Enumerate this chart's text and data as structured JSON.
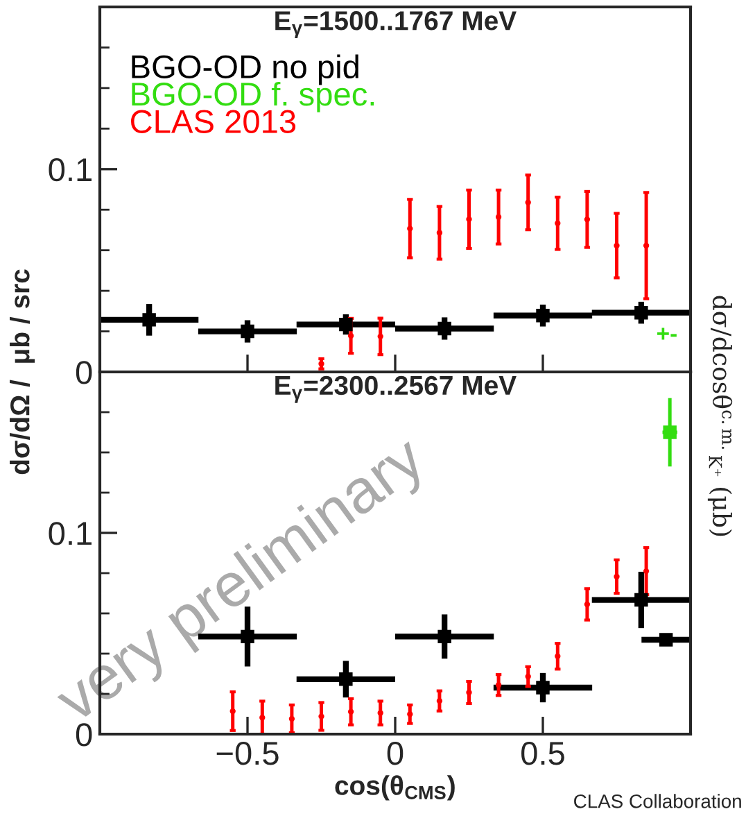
{
  "chart_data": [
    {
      "type": "scatter",
      "title": "E$_{γ}$=1500..1767 MeV",
      "ylabel": "dσ/dΩ /  μb / src",
      "tick_labels": "y",
      "xlim": [
        -1,
        1
      ],
      "ylim": [
        0,
        0.18
      ],
      "xticks": [
        {
          "value": -0.5,
          "label": null
        },
        {
          "value": 0,
          "label": null
        },
        {
          "value": 0.5,
          "label": null
        }
      ],
      "yticks": [
        0,
        {
          "value": 0.02,
          "label": null
        },
        {
          "value": 0.04,
          "label": null
        },
        {
          "value": 0.06,
          "label": null
        },
        {
          "value": 0.08,
          "label": null
        },
        0.1,
        {
          "value": 0.12,
          "label": null
        },
        {
          "value": 0.14,
          "label": null
        },
        {
          "value": 0.16,
          "label": null
        }
      ],
      "series": [
        {
          "name": "BGO-OD no pid",
          "color": "#000000",
          "x": [
            -0.833,
            -0.5,
            -0.167,
            0.167,
            0.5,
            0.833
          ],
          "values": [
            0.0257,
            0.02,
            0.0234,
            0.0214,
            0.0278,
            0.0292
          ],
          "errors": [
            0.0078,
            0.0055,
            0.005,
            0.0055,
            0.0054,
            0.0054
          ],
          "xerrors": [
            0.167,
            0.167,
            0.167,
            0.167,
            0.167,
            0.167
          ]
        },
        {
          "name": "BGO-OD f. spec.",
          "color": "#33dd11"
        },
        {
          "name": "CLAS 2013",
          "color": "#ff0000",
          "x": [
            -0.25,
            -0.15,
            -0.05,
            0.05,
            0.15,
            0.25,
            0.35,
            0.45,
            0.55,
            0.65,
            0.75,
            0.85
          ],
          "values": [
            0.004,
            0.0178,
            0.0175,
            0.0707,
            0.0686,
            0.0753,
            0.0764,
            0.0836,
            0.0733,
            0.0752,
            0.0623,
            0.0623
          ],
          "errors": [
            0.0025,
            0.0086,
            0.009,
            0.0144,
            0.013,
            0.0144,
            0.0133,
            0.0135,
            0.0129,
            0.0138,
            0.0159,
            0.0262
          ]
        }
      ],
      "annotations": [
        "+-",
        "dσ/dcosθ$^{c.m.}$$_{K⁺}$ (μb)"
      ]
    },
    {
      "type": "scatter",
      "title": "E$_{γ}$=2300..2567 MeV",
      "xlabel": "cos(θ$_{CMS}$)",
      "xlim": [
        -1,
        1
      ],
      "ylim": [
        0,
        0.18
      ],
      "xticks": [
        {
          "value": -0.5,
          "label": "−0.5"
        },
        0,
        0.5
      ],
      "yticks": [
        0,
        {
          "value": 0.02,
          "label": null
        },
        {
          "value": 0.04,
          "label": null
        },
        {
          "value": 0.06,
          "label": null
        },
        {
          "value": 0.08,
          "label": null
        },
        0.1,
        {
          "value": 0.12,
          "label": null
        },
        {
          "value": 0.14,
          "label": null
        },
        {
          "value": 0.16,
          "label": null
        }
      ],
      "series": [
        {
          "color": "#000000",
          "x": [
            -0.5,
            -0.167,
            0.167,
            0.5,
            0.833,
            0.917
          ],
          "values": [
            0.0485,
            0.0273,
            0.0485,
            0.0231,
            0.0667,
            0.0469
          ],
          "errors": [
            0.0149,
            0.0091,
            0.011,
            0.0073,
            0.014,
            null
          ],
          "xerrors": [
            0.167,
            0.167,
            0.167,
            0.167,
            0.167,
            0.083
          ]
        },
        {
          "color": "#33dd11",
          "x": [
            0.93
          ],
          "values": [
            0.15
          ],
          "errors": [
            0.017
          ],
          "xerrors": [
            0.025
          ]
        },
        {
          "color": "#ff0000",
          "x": [
            -0.55,
            -0.45,
            -0.35,
            -0.25,
            -0.15,
            -0.05,
            0.05,
            0.15,
            0.25,
            0.35,
            0.45,
            0.55,
            0.65,
            0.75,
            0.85
          ],
          "values": [
            0.0114,
            0.0082,
            0.0076,
            0.0088,
            0.0111,
            0.0105,
            0.0099,
            0.0165,
            0.0207,
            0.0244,
            0.0286,
            0.0387,
            0.0645,
            0.0783,
            0.081
          ],
          "errors": [
            0.0096,
            0.0082,
            0.0069,
            0.0069,
            0.0065,
            0.0059,
            0.0046,
            0.005,
            0.0055,
            0.0052,
            0.0049,
            0.0064,
            0.0078,
            0.0083,
            0.0117
          ]
        }
      ],
      "annotations": [
        "CLAS Collaboration",
        "very preliminary"
      ]
    }
  ]
}
